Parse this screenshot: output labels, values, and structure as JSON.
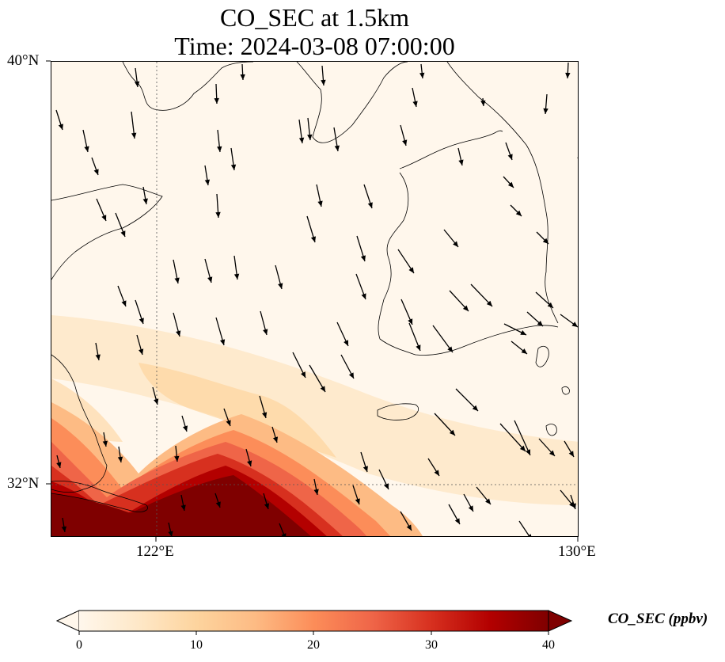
{
  "title": {
    "line1": "CO_SEC at 1.5km",
    "line2": "Time: 2024-03-08 07:00:00"
  },
  "map": {
    "lon_range": [
      120.33,
      130
    ],
    "lat_range": [
      31.2,
      40
    ],
    "lat_labels": [
      "40°N",
      "32°N"
    ],
    "lon_labels": [
      "122°E",
      "130°E"
    ],
    "gridlines": {
      "lon": [
        122
      ],
      "lat": [
        32
      ]
    }
  },
  "colorbar": {
    "label": "CO_SEC (ppbv)",
    "ticks": [
      "0",
      "10",
      "20",
      "30",
      "40"
    ],
    "range": [
      0,
      40
    ],
    "extend": "both",
    "colormap": "OrRd",
    "colors": [
      "#fff7ec",
      "#fee8c8",
      "#fdd49e",
      "#fdbb84",
      "#fc8d59",
      "#ef6548",
      "#d7301f",
      "#b30000",
      "#7f0000"
    ]
  },
  "wind_vectors": [
    [
      70,
      138,
      8,
      25
    ],
    [
      104,
      163,
      6,
      28
    ],
    [
      170,
      85,
      3,
      24
    ],
    [
      165,
      140,
      4,
      34
    ],
    [
      272,
      105,
      1,
      25
    ],
    [
      305,
      80,
      1,
      20
    ],
    [
      377,
      150,
      4,
      30
    ],
    [
      406,
      82,
      2,
      25
    ],
    [
      520,
      110,
      5,
      24
    ],
    [
      531,
      80,
      2,
      18
    ],
    [
      609,
      123,
      1,
      10
    ],
    [
      690,
      118,
      -2,
      25
    ],
    [
      717,
      78,
      -1,
      20
    ],
    [
      115,
      198,
      8,
      22
    ],
    [
      180,
      235,
      4,
      22
    ],
    [
      274,
      163,
      3,
      28
    ],
    [
      291,
      186,
      4,
      28
    ],
    [
      258,
      208,
      4,
      25
    ],
    [
      273,
      244,
      2,
      30
    ],
    [
      388,
      148,
      3,
      28
    ],
    [
      421,
      160,
      5,
      30
    ],
    [
      505,
      157,
      7,
      26
    ],
    [
      578,
      186,
      5,
      22
    ],
    [
      638,
      179,
      8,
      22
    ],
    [
      730,
      192,
      3,
      12
    ],
    [
      121,
      250,
      12,
      28
    ],
    [
      145,
      268,
      12,
      30
    ],
    [
      218,
      327,
      6,
      30
    ],
    [
      258,
      326,
      8,
      30
    ],
    [
      295,
      322,
      4,
      30
    ],
    [
      347,
      334,
      8,
      30
    ],
    [
      387,
      272,
      10,
      33
    ],
    [
      399,
      232,
      6,
      28
    ],
    [
      459,
      232,
      10,
      30
    ],
    [
      450,
      297,
      10,
      32
    ],
    [
      502,
      314,
      20,
      30
    ],
    [
      560,
      289,
      18,
      22
    ],
    [
      635,
      222,
      13,
      14
    ],
    [
      644,
      258,
      14,
      14
    ],
    [
      677,
      292,
      15,
      15
    ],
    [
      148,
      360,
      10,
      26
    ],
    [
      170,
      378,
      10,
      30
    ],
    [
      218,
      394,
      8,
      30
    ],
    [
      272,
      400,
      10,
      35
    ],
    [
      328,
      392,
      8,
      30
    ],
    [
      449,
      345,
      12,
      32
    ],
    [
      506,
      377,
      14,
      32
    ],
    [
      516,
      407,
      14,
      35
    ],
    [
      567,
      366,
      24,
      26
    ],
    [
      594,
      358,
      27,
      28
    ],
    [
      676,
      368,
      22,
      20
    ],
    [
      707,
      396,
      22,
      16
    ],
    [
      120,
      432,
      4,
      22
    ],
    [
      172,
      422,
      7,
      25
    ],
    [
      369,
      444,
      16,
      32
    ],
    [
      390,
      460,
      20,
      34
    ],
    [
      425,
      406,
      14,
      30
    ],
    [
      430,
      447,
      16,
      30
    ],
    [
      546,
      410,
      25,
      34
    ],
    [
      636,
      408,
      28,
      14
    ],
    [
      665,
      393,
      20,
      18
    ],
    [
      645,
      430,
      20,
      16
    ],
    [
      192,
      488,
      6,
      22
    ],
    [
      229,
      524,
      6,
      20
    ],
    [
      282,
      515,
      8,
      22
    ],
    [
      327,
      499,
      8,
      28
    ],
    [
      343,
      538,
      6,
      20
    ],
    [
      130,
      545,
      3,
      18
    ],
    [
      149,
      563,
      3,
      20
    ],
    [
      221,
      562,
      2,
      20
    ],
    [
      310,
      566,
      6,
      22
    ],
    [
      575,
      490,
      28,
      28
    ],
    [
      548,
      521,
      26,
      28
    ],
    [
      631,
      534,
      32,
      35
    ],
    [
      649,
      530,
      20,
      44
    ],
    [
      680,
      553,
      20,
      22
    ],
    [
      712,
      556,
      12,
      20
    ],
    [
      71,
      574,
      4,
      16
    ],
    [
      455,
      570,
      8,
      25
    ],
    [
      478,
      592,
      12,
      25
    ],
    [
      540,
      578,
      14,
      22
    ],
    [
      396,
      604,
      4,
      20
    ],
    [
      445,
      612,
      8,
      24
    ],
    [
      601,
      614,
      18,
      22
    ],
    [
      585,
      623,
      12,
      22
    ],
    [
      566,
      636,
      14,
      25
    ],
    [
      707,
      618,
      18,
      22
    ],
    [
      720,
      624,
      6,
      18
    ],
    [
      78,
      653,
      3,
      18
    ],
    [
      228,
      624,
      4,
      20
    ],
    [
      271,
      622,
      6,
      18
    ],
    [
      332,
      622,
      6,
      20
    ],
    [
      505,
      645,
      14,
      24
    ],
    [
      212,
      659,
      4,
      18
    ],
    [
      352,
      660,
      8,
      20
    ],
    [
      655,
      657,
      16,
      24
    ]
  ]
}
